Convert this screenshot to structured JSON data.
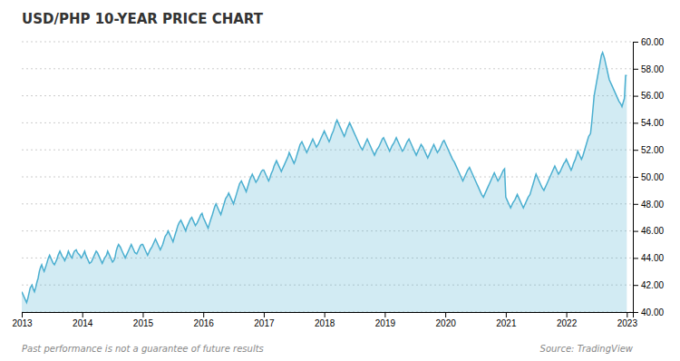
{
  "chart_data": {
    "type": "area",
    "title": "USD/PHP 10-YEAR PRICE CHART",
    "color": "#4BAFD0",
    "grid": true,
    "annotations": [
      "Past performance is not a guarantee of future results",
      "Source: TradingView"
    ],
    "xlim": [
      2013.0,
      2023.1
    ],
    "xticks": [
      2013,
      2014,
      2015,
      2016,
      2017,
      2018,
      2019,
      2020,
      2021,
      2022,
      2023
    ],
    "ylim": [
      40.0,
      60.0
    ],
    "yticks": [
      {
        "value": 40.0,
        "label": "40.00"
      },
      {
        "value": 42.0,
        "label": "42.00"
      },
      {
        "value": 44.0,
        "label": "44.00"
      },
      {
        "value": 46.0,
        "label": "46.00"
      },
      {
        "value": 48.0,
        "label": "48.00"
      },
      {
        "value": 50.0,
        "label": "50.00"
      },
      {
        "value": 52.0,
        "label": "52.00"
      },
      {
        "value": 54.0,
        "label": "54.00"
      },
      {
        "value": 56.0,
        "label": "56.00"
      },
      {
        "value": 58.0,
        "label": "58.00"
      },
      {
        "value": 60.0,
        "label": "60.00"
      }
    ],
    "x": [
      2013.0,
      2013.02,
      2013.04,
      2013.06,
      2013.08,
      2013.1,
      2013.12,
      2013.14,
      2013.17,
      2013.19,
      2013.21,
      2013.23,
      2013.25,
      2013.27,
      2013.29,
      2013.31,
      2013.33,
      2013.35,
      2013.37,
      2013.4,
      2013.42,
      2013.44,
      2013.46,
      2013.48,
      2013.5,
      2013.52,
      2013.54,
      2013.56,
      2013.58,
      2013.6,
      2013.63,
      2013.65,
      2013.67,
      2013.69,
      2013.71,
      2013.73,
      2013.75,
      2013.77,
      2013.79,
      2013.81,
      2013.83,
      2013.85,
      2013.87,
      2013.9,
      2013.92,
      2013.94,
      2013.96,
      2013.98,
      2014.0,
      2014.02,
      2014.04,
      2014.06,
      2014.08,
      2014.1,
      2014.12,
      2014.15,
      2014.17,
      2014.19,
      2014.21,
      2014.23,
      2014.25,
      2014.27,
      2014.29,
      2014.31,
      2014.33,
      2014.35,
      2014.37,
      2014.4,
      2014.42,
      2014.44,
      2014.46,
      2014.48,
      2014.5,
      2014.52,
      2014.54,
      2014.56,
      2014.58,
      2014.6,
      2014.63,
      2014.65,
      2014.67,
      2014.69,
      2014.71,
      2014.73,
      2014.75,
      2014.77,
      2014.79,
      2014.81,
      2014.83,
      2014.85,
      2014.87,
      2014.9,
      2014.92,
      2014.94,
      2014.96,
      2014.98,
      2015.0,
      2015.02,
      2015.04,
      2015.06,
      2015.08,
      2015.1,
      2015.12,
      2015.15,
      2015.17,
      2015.19,
      2015.21,
      2015.23,
      2015.25,
      2015.27,
      2015.29,
      2015.31,
      2015.33,
      2015.35,
      2015.37,
      2015.4,
      2015.42,
      2015.44,
      2015.46,
      2015.48,
      2015.5,
      2015.52,
      2015.54,
      2015.56,
      2015.58,
      2015.6,
      2015.63,
      2015.65,
      2015.67,
      2015.69,
      2015.71,
      2015.73,
      2015.75,
      2015.77,
      2015.79,
      2015.81,
      2015.83,
      2015.85,
      2015.87,
      2015.9,
      2015.92,
      2015.94,
      2015.96,
      2015.98,
      2016.0,
      2016.02,
      2016.04,
      2016.06,
      2016.08,
      2016.1,
      2016.12,
      2016.15,
      2016.17,
      2016.19,
      2016.21,
      2016.23,
      2016.25,
      2016.27,
      2016.29,
      2016.31,
      2016.33,
      2016.35,
      2016.37,
      2016.4,
      2016.42,
      2016.44,
      2016.46,
      2016.48,
      2016.5,
      2016.52,
      2016.54,
      2016.56,
      2016.58,
      2016.6,
      2016.63,
      2016.65,
      2016.67,
      2016.69,
      2016.71,
      2016.73,
      2016.75,
      2016.77,
      2016.79,
      2016.81,
      2016.83,
      2016.85,
      2016.87,
      2016.9,
      2016.92,
      2016.94,
      2016.96,
      2016.98,
      2017.0,
      2017.02,
      2017.04,
      2017.06,
      2017.08,
      2017.1,
      2017.12,
      2017.15,
      2017.17,
      2017.19,
      2017.21,
      2017.23,
      2017.25,
      2017.27,
      2017.29,
      2017.31,
      2017.33,
      2017.35,
      2017.37,
      2017.4,
      2017.42,
      2017.44,
      2017.46,
      2017.48,
      2017.5,
      2017.52,
      2017.54,
      2017.56,
      2017.58,
      2017.6,
      2017.63,
      2017.65,
      2017.67,
      2017.69,
      2017.71,
      2017.73,
      2017.75,
      2017.77,
      2017.79,
      2017.81,
      2017.83,
      2017.85,
      2017.87,
      2017.9,
      2017.92,
      2017.94,
      2017.96,
      2017.98,
      2018.0,
      2018.02,
      2018.04,
      2018.06,
      2018.08,
      2018.1,
      2018.12,
      2018.15,
      2018.17,
      2018.19,
      2018.21,
      2018.23,
      2018.25,
      2018.27,
      2018.29,
      2018.31,
      2018.33,
      2018.35,
      2018.37,
      2018.4,
      2018.42,
      2018.44,
      2018.46,
      2018.48,
      2018.5,
      2018.52,
      2018.54,
      2018.56,
      2018.58,
      2018.6,
      2018.63,
      2018.65,
      2018.67,
      2018.69,
      2018.71,
      2018.73,
      2018.75,
      2018.77,
      2018.79,
      2018.81,
      2018.83,
      2018.85,
      2018.87,
      2018.9,
      2018.92,
      2018.94,
      2018.96,
      2018.98,
      2019.0,
      2019.02,
      2019.04,
      2019.06,
      2019.08,
      2019.1,
      2019.12,
      2019.15,
      2019.17,
      2019.19,
      2019.21,
      2019.23,
      2019.25,
      2019.27,
      2019.29,
      2019.31,
      2019.33,
      2019.35,
      2019.37,
      2019.4,
      2019.42,
      2019.44,
      2019.46,
      2019.48,
      2019.5,
      2019.52,
      2019.54,
      2019.56,
      2019.58,
      2019.6,
      2019.63,
      2019.65,
      2019.67,
      2019.69,
      2019.71,
      2019.73,
      2019.75,
      2019.77,
      2019.79,
      2019.81,
      2019.83,
      2019.85,
      2019.87,
      2019.9,
      2019.92,
      2019.94,
      2019.96,
      2019.98,
      2020.0,
      2020.02,
      2020.04,
      2020.06,
      2020.08,
      2020.1,
      2020.12,
      2020.15,
      2020.17,
      2020.19,
      2020.21,
      2020.23,
      2020.25,
      2020.27,
      2020.29,
      2020.31,
      2020.33,
      2020.35,
      2020.37,
      2020.4,
      2020.42,
      2020.44,
      2020.46,
      2020.48,
      2020.5,
      2020.52,
      2020.54,
      2020.56,
      2020.58,
      2020.6,
      2020.63,
      2020.65,
      2020.67,
      2020.69,
      2020.71,
      2020.73,
      2020.75,
      2020.77,
      2020.79,
      2020.81,
      2020.83,
      2020.85,
      2020.87,
      2020.9,
      2020.92,
      2020.94,
      2020.96,
      2020.98,
      2021.0,
      2021.02,
      2021.04,
      2021.06,
      2021.08,
      2021.1,
      2021.12,
      2021.15,
      2021.17,
      2021.19,
      2021.21,
      2021.23,
      2021.25,
      2021.27,
      2021.29,
      2021.31,
      2021.33,
      2021.35,
      2021.37,
      2021.4,
      2021.42,
      2021.44,
      2021.46,
      2021.48,
      2021.5,
      2021.52,
      2021.54,
      2021.56,
      2021.58,
      2021.6,
      2021.63,
      2021.65,
      2021.67,
      2021.69,
      2021.71,
      2021.73,
      2021.75,
      2021.77,
      2021.79,
      2021.81,
      2021.83,
      2021.85,
      2021.87,
      2021.9,
      2021.92,
      2021.94,
      2021.96,
      2021.98,
      2022.0,
      2022.02,
      2022.04,
      2022.06,
      2022.08,
      2022.1,
      2022.12,
      2022.15,
      2022.17,
      2022.19,
      2022.21,
      2022.23,
      2022.25,
      2022.27,
      2022.29,
      2022.31,
      2022.33,
      2022.35,
      2022.37,
      2022.4,
      2022.42,
      2022.44,
      2022.46,
      2022.48,
      2022.5,
      2022.52,
      2022.54,
      2022.56,
      2022.58,
      2022.6,
      2022.63,
      2022.65,
      2022.67,
      2022.69,
      2022.71,
      2022.73,
      2022.75,
      2022.77,
      2022.79,
      2022.81,
      2022.83,
      2022.85,
      2022.87,
      2022.9,
      2022.92,
      2022.94,
      2022.96,
      2022.98,
      2023.0
    ],
    "values": [
      41.5,
      41.3,
      41.1,
      40.9,
      40.7,
      41.0,
      41.4,
      41.8,
      42.0,
      41.7,
      41.5,
      41.8,
      42.2,
      42.5,
      43.0,
      43.3,
      43.5,
      43.2,
      43.0,
      43.4,
      43.7,
      44.0,
      44.2,
      44.0,
      43.8,
      43.6,
      43.5,
      43.7,
      43.9,
      44.2,
      44.5,
      44.3,
      44.1,
      44.0,
      43.8,
      44.0,
      44.2,
      44.5,
      44.3,
      44.1,
      44.0,
      44.3,
      44.5,
      44.6,
      44.4,
      44.3,
      44.2,
      44.0,
      44.1,
      44.3,
      44.5,
      44.2,
      44.0,
      43.8,
      43.6,
      43.7,
      43.9,
      44.1,
      44.3,
      44.5,
      44.4,
      44.2,
      44.0,
      43.8,
      43.6,
      43.8,
      44.0,
      44.2,
      44.5,
      44.3,
      44.1,
      43.9,
      43.7,
      43.8,
      44.0,
      44.5,
      44.8,
      45.0,
      44.8,
      44.6,
      44.4,
      44.2,
      44.0,
      44.2,
      44.4,
      44.6,
      44.8,
      45.0,
      44.8,
      44.6,
      44.4,
      44.3,
      44.5,
      44.7,
      44.9,
      45.0,
      45.0,
      44.8,
      44.6,
      44.4,
      44.2,
      44.4,
      44.6,
      44.8,
      45.0,
      45.2,
      45.4,
      45.2,
      45.0,
      44.8,
      44.6,
      44.8,
      45.0,
      45.3,
      45.6,
      45.8,
      46.0,
      45.8,
      45.6,
      45.4,
      45.2,
      45.5,
      45.8,
      46.1,
      46.4,
      46.6,
      46.8,
      46.6,
      46.4,
      46.2,
      46.0,
      46.3,
      46.5,
      46.7,
      46.9,
      47.0,
      46.8,
      46.6,
      46.4,
      46.6,
      46.8,
      47.0,
      47.2,
      47.3,
      47.0,
      46.8,
      46.6,
      46.4,
      46.2,
      46.5,
      46.8,
      47.2,
      47.5,
      47.8,
      48.0,
      47.8,
      47.6,
      47.4,
      47.2,
      47.5,
      47.8,
      48.1,
      48.4,
      48.6,
      48.8,
      48.6,
      48.4,
      48.2,
      48.0,
      48.3,
      48.6,
      48.9,
      49.2,
      49.5,
      49.7,
      49.5,
      49.3,
      49.1,
      48.9,
      49.2,
      49.5,
      49.8,
      50.0,
      50.2,
      50.0,
      49.8,
      49.6,
      49.8,
      50.0,
      50.2,
      50.4,
      50.5,
      50.5,
      50.3,
      50.1,
      49.9,
      49.7,
      49.9,
      50.2,
      50.5,
      50.8,
      51.0,
      51.2,
      51.0,
      50.8,
      50.6,
      50.4,
      50.6,
      50.8,
      51.0,
      51.2,
      51.5,
      51.8,
      51.6,
      51.4,
      51.2,
      51.0,
      51.2,
      51.5,
      51.8,
      52.1,
      52.4,
      52.6,
      52.4,
      52.2,
      52.0,
      51.8,
      52.0,
      52.2,
      52.4,
      52.6,
      52.8,
      52.6,
      52.4,
      52.2,
      52.4,
      52.6,
      52.8,
      53.0,
      53.2,
      53.4,
      53.2,
      53.0,
      52.8,
      52.6,
      52.8,
      53.1,
      53.4,
      53.7,
      54.0,
      54.2,
      54.0,
      53.8,
      53.6,
      53.4,
      53.2,
      53.0,
      53.2,
      53.5,
      53.8,
      54.0,
      53.8,
      53.6,
      53.4,
      53.2,
      53.0,
      52.8,
      52.6,
      52.4,
      52.2,
      52.0,
      52.2,
      52.4,
      52.6,
      52.8,
      52.6,
      52.4,
      52.2,
      52.0,
      51.8,
      51.6,
      51.8,
      52.0,
      52.2,
      52.4,
      52.6,
      52.8,
      52.9,
      52.7,
      52.5,
      52.3,
      52.1,
      51.9,
      52.1,
      52.3,
      52.5,
      52.7,
      52.9,
      52.7,
      52.5,
      52.3,
      52.1,
      51.9,
      52.0,
      52.2,
      52.4,
      52.6,
      52.8,
      52.6,
      52.4,
      52.2,
      52.0,
      51.8,
      51.6,
      51.8,
      52.0,
      52.2,
      52.4,
      52.2,
      52.0,
      51.8,
      51.6,
      51.4,
      51.6,
      51.8,
      52.0,
      52.2,
      52.4,
      52.2,
      52.0,
      51.8,
      52.0,
      52.2,
      52.4,
      52.6,
      52.7,
      52.5,
      52.3,
      52.1,
      51.9,
      51.7,
      51.5,
      51.3,
      51.1,
      50.9,
      50.7,
      50.5,
      50.3,
      50.1,
      49.9,
      49.7,
      49.9,
      50.1,
      50.3,
      50.5,
      50.7,
      50.5,
      50.3,
      50.1,
      49.9,
      49.7,
      49.5,
      49.3,
      49.1,
      48.9,
      48.7,
      48.5,
      48.7,
      48.9,
      49.1,
      49.3,
      49.5,
      49.7,
      49.9,
      50.1,
      50.3,
      50.1,
      49.9,
      49.7,
      49.9,
      50.1,
      50.3,
      50.5,
      50.6,
      48.5,
      48.3,
      48.1,
      47.9,
      47.7,
      47.9,
      48.1,
      48.3,
      48.5,
      48.7,
      48.5,
      48.3,
      48.1,
      47.9,
      47.7,
      47.9,
      48.1,
      48.3,
      48.5,
      48.7,
      49.0,
      49.3,
      49.6,
      49.9,
      50.2,
      50.0,
      49.8,
      49.6,
      49.4,
      49.2,
      49.0,
      49.2,
      49.4,
      49.6,
      49.8,
      50.0,
      50.2,
      50.4,
      50.6,
      50.8,
      50.6,
      50.4,
      50.2,
      50.4,
      50.6,
      50.8,
      51.0,
      51.1,
      51.3,
      51.1,
      50.9,
      50.7,
      50.5,
      50.7,
      51.0,
      51.3,
      51.6,
      51.9,
      51.7,
      51.5,
      51.3,
      51.5,
      51.8,
      52.1,
      52.4,
      52.7,
      53.0,
      53.2,
      54.0,
      55.0,
      56.0,
      56.5,
      57.0,
      57.5,
      58.0,
      58.5,
      59.0,
      59.2,
      58.8,
      58.4,
      58.0,
      57.6,
      57.2,
      57.0,
      56.8,
      56.6,
      56.4,
      56.2,
      56.0,
      55.8,
      55.6,
      55.4,
      55.2,
      55.5,
      55.8,
      57.5,
      57.5
    ]
  }
}
